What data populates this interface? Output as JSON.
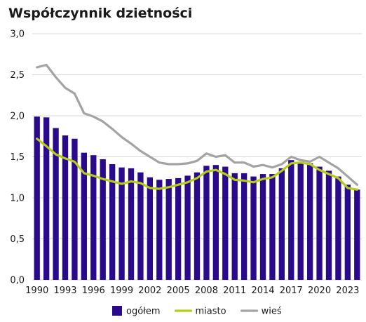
{
  "chart_data": {
    "type": "bar",
    "title": "Współczynnik dzietności",
    "xlabel": "",
    "ylabel": "",
    "ylim": [
      0,
      3
    ],
    "grid": true,
    "legend_position": "bottom",
    "x": [
      1990,
      1991,
      1992,
      1993,
      1994,
      1995,
      1996,
      1997,
      1998,
      1999,
      2000,
      2001,
      2002,
      2003,
      2004,
      2005,
      2006,
      2007,
      2008,
      2009,
      2010,
      2011,
      2012,
      2013,
      2014,
      2015,
      2016,
      2017,
      2018,
      2019,
      2020,
      2021,
      2022,
      2023,
      2024
    ],
    "x_tick_labels": [
      "1990",
      "1993",
      "1996",
      "1999",
      "2002",
      "2005",
      "2008",
      "2011",
      "2014",
      "2017",
      "2020",
      "2023"
    ],
    "y_tick_labels": [
      "0,0",
      "0,5",
      "1,0",
      "1,5",
      "2,0",
      "2,5",
      "3,0"
    ],
    "y_ticks": [
      0,
      0.5,
      1.0,
      1.5,
      2.0,
      2.5,
      3.0
    ],
    "series": [
      {
        "name": "ogółem",
        "kind": "bar",
        "color": "#2a0a8c",
        "values": [
          1.99,
          1.98,
          1.85,
          1.76,
          1.72,
          1.55,
          1.52,
          1.47,
          1.41,
          1.37,
          1.36,
          1.31,
          1.25,
          1.22,
          1.23,
          1.24,
          1.27,
          1.31,
          1.39,
          1.4,
          1.38,
          1.3,
          1.3,
          1.26,
          1.29,
          1.29,
          1.36,
          1.46,
          1.44,
          1.42,
          1.38,
          1.33,
          1.26,
          1.16,
          1.1
        ]
      },
      {
        "name": "miasto",
        "kind": "line",
        "color": "#b5cc18",
        "values": [
          1.72,
          1.63,
          1.53,
          1.48,
          1.44,
          1.3,
          1.27,
          1.23,
          1.2,
          1.17,
          1.2,
          1.18,
          1.12,
          1.11,
          1.13,
          1.16,
          1.19,
          1.24,
          1.32,
          1.34,
          1.29,
          1.22,
          1.21,
          1.19,
          1.23,
          1.25,
          1.33,
          1.42,
          1.43,
          1.41,
          1.34,
          1.29,
          1.24,
          1.12,
          1.1
        ]
      },
      {
        "name": "wieś",
        "kind": "line",
        "color": "#a3a3a3",
        "values": [
          2.59,
          2.62,
          2.47,
          2.34,
          2.27,
          2.03,
          1.99,
          1.93,
          1.84,
          1.74,
          1.66,
          1.57,
          1.5,
          1.43,
          1.41,
          1.41,
          1.42,
          1.45,
          1.54,
          1.5,
          1.52,
          1.43,
          1.43,
          1.38,
          1.4,
          1.37,
          1.41,
          1.5,
          1.46,
          1.44,
          1.5,
          1.43,
          1.36,
          1.26,
          1.16
        ]
      }
    ]
  }
}
